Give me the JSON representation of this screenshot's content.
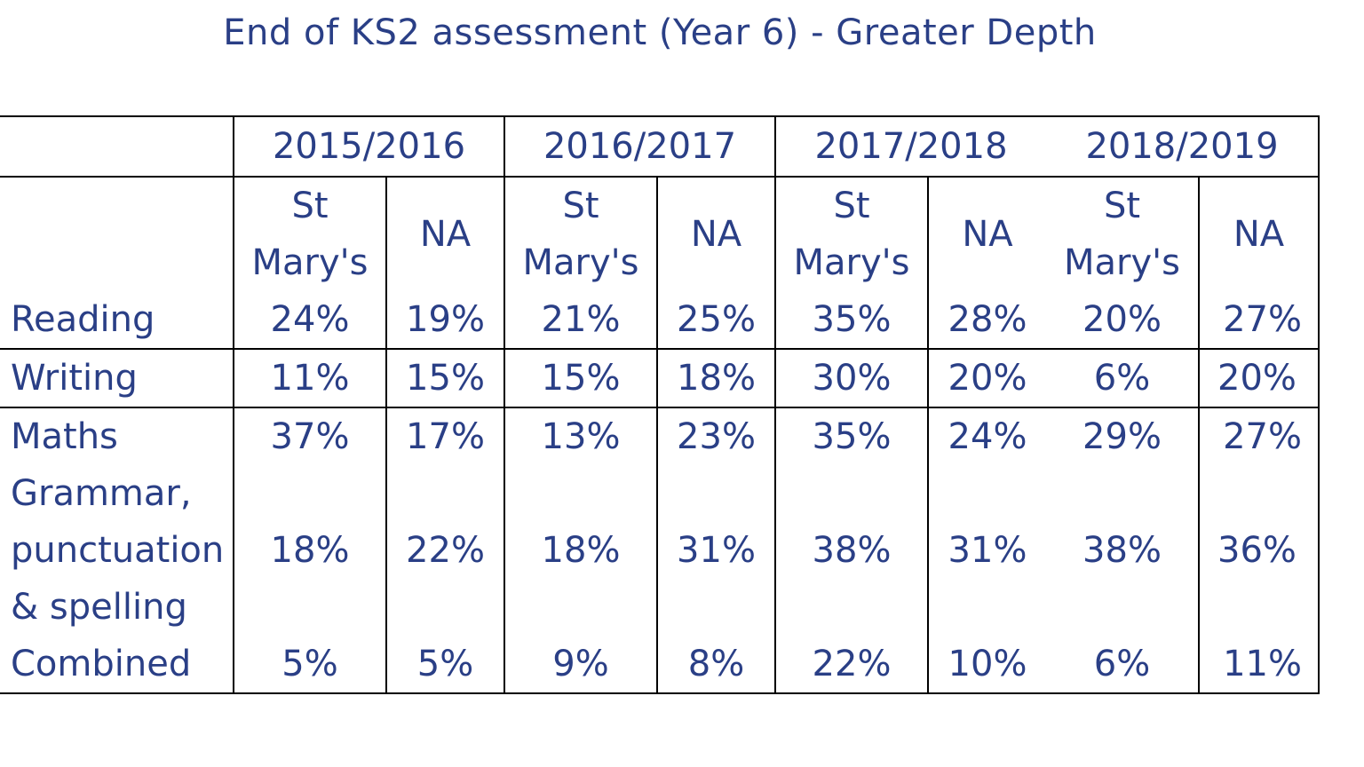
{
  "title": "End of KS2 assessment (Year 6) - Greater Depth",
  "years": [
    "2015/2016",
    "2016/2017",
    "2017/2018",
    "2018/2019"
  ],
  "column_headers": {
    "school_line1": "St",
    "school_line2": "Mary's",
    "national": "NA"
  },
  "rows": {
    "reading": {
      "label": "Reading",
      "values": [
        "24%",
        "19%",
        "21%",
        "25%",
        "35%",
        "28%",
        "20%",
        "27%"
      ]
    },
    "writing": {
      "label": "Writing",
      "values": [
        "11%",
        "15%",
        "15%",
        "18%",
        "30%",
        "20%",
        "6%",
        "20%"
      ]
    },
    "maths": {
      "label": "Maths",
      "values": [
        "37%",
        "17%",
        "13%",
        "23%",
        "35%",
        "24%",
        "29%",
        "27%"
      ]
    },
    "gps": {
      "label_line1": "Grammar,",
      "label_line2": "punctuation",
      "label_line3": "& spelling",
      "values": [
        "18%",
        "22%",
        "18%",
        "31%",
        "38%",
        "31%",
        "38%",
        "36%"
      ]
    },
    "combined": {
      "label": "Combined",
      "values": [
        "5%",
        "5%",
        "9%",
        "8%",
        "22%",
        "10%",
        "6%",
        "11%"
      ]
    }
  },
  "colors": {
    "text": "#2a3f86",
    "border": "#000000",
    "background": "#ffffff"
  }
}
